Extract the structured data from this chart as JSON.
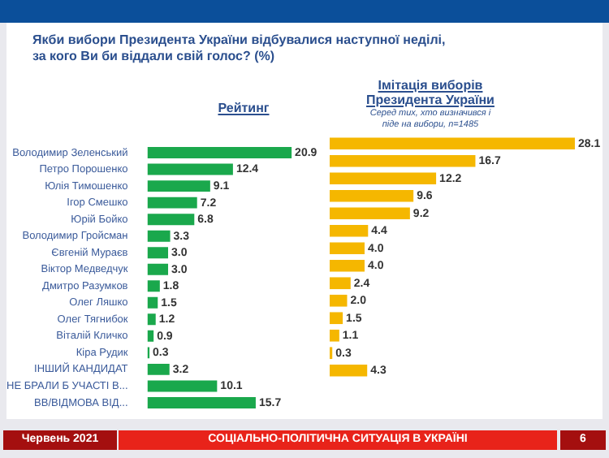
{
  "chart_data": [
    {
      "type": "bar",
      "orientation": "horizontal",
      "title": "Рейтинг",
      "annotations": [
        "Якби вибори Президента України відбувалися наступної неділі, за кого Ви би віддали свій голос? (%)",
        "Червень 2021",
        "СОЦІАЛЬНО-ПОЛІТИЧНА СИТУАЦІЯ В УКРАЇНІ",
        "6"
      ],
      "categories": [
        "Володимир Зеленський",
        "Петро Порошенко",
        "Юлія Тимошенко",
        "Ігор Смешко",
        "Юрій Бойко",
        "Володимир Гройсман",
        "Євгеній Мураєв",
        "Віктор Медведчук",
        "Дмитро Разумков",
        "Олег Ляшко",
        "Олег Тягнибок",
        "Віталій Кличко",
        "Кіра Рудик",
        "ІНШИЙ КАНДИДАТ",
        "НЕ БРАЛИ Б УЧАСТІ В...",
        "ВВ/ВІДМОВА ВІД..."
      ],
      "values": [
        20.9,
        12.4,
        9.1,
        7.2,
        6.8,
        3.3,
        3.0,
        3.0,
        1.8,
        1.5,
        1.2,
        0.9,
        0.3,
        3.2,
        10.1,
        15.7
      ],
      "value_labels": [
        "20.9",
        "12.4",
        "9.1",
        "7.2",
        "6.8",
        "3.3",
        "3.0",
        "3.0",
        "1.8",
        "1.5",
        "1.2",
        "0.9",
        "0.3",
        "3.2",
        "10.1",
        "15.7"
      ],
      "color": "#1aa84c",
      "tick_labels": "y"
    },
    {
      "type": "bar",
      "orientation": "horizontal",
      "title": "Імітація виборів Президента України",
      "subtitle": "Серед тих, хто визначився і піде на вибори, n=1485",
      "categories": [
        null,
        null,
        null,
        null,
        null,
        null,
        null,
        null,
        null,
        null,
        null,
        null,
        null,
        null,
        null,
        null
      ],
      "values": [
        28.1,
        16.7,
        12.2,
        9.6,
        9.2,
        4.4,
        4.0,
        4.0,
        2.4,
        2.0,
        1.5,
        1.1,
        0.3,
        4.3,
        null,
        null
      ],
      "value_labels": [
        "28.1",
        "16.7",
        "12.2",
        "9.6",
        "9.2",
        "4.4",
        "4.0",
        "4.0",
        "2.4",
        "2.0",
        "1.5",
        "1.1",
        "0.3",
        "4.3",
        null,
        null
      ],
      "color": "#f5b700",
      "tick_labels": false
    }
  ]
}
